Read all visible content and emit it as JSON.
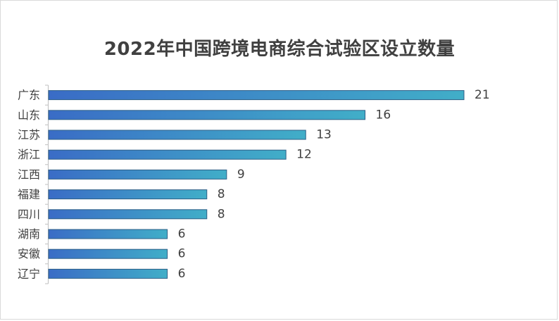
{
  "chart_data": {
    "type": "bar",
    "orientation": "horizontal",
    "title": "2022年中国跨境电商综合试验区设立数量",
    "categories": [
      "广东",
      "山东",
      "江苏",
      "浙江",
      "江西",
      "福建",
      "四川",
      "湖南",
      "安徽",
      "辽宁"
    ],
    "values": [
      21,
      16,
      13,
      12,
      9,
      8,
      8,
      6,
      6,
      6
    ],
    "xlim": [
      0,
      21
    ],
    "data_labels": true,
    "grid": false,
    "legend": "none",
    "bar_gradient": [
      "#3a6cc6",
      "#41aec8"
    ],
    "bar_stroke": "#2d5f86"
  }
}
